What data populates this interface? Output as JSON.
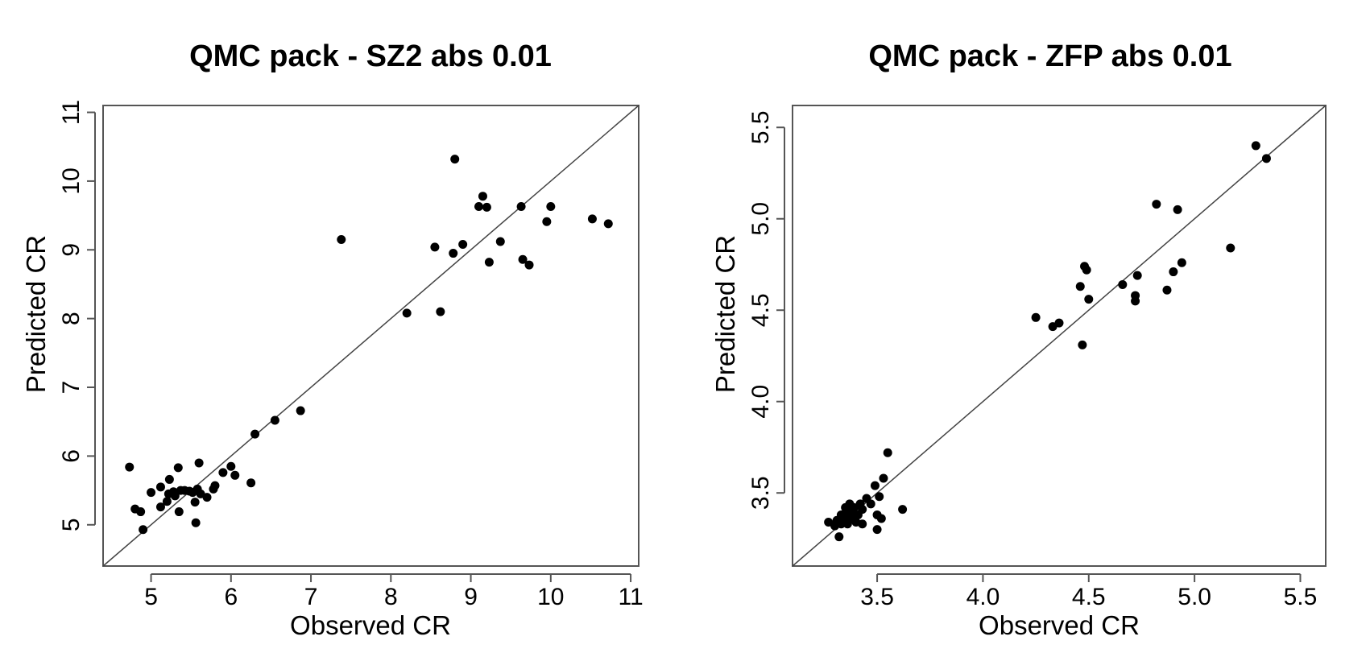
{
  "chart_data": [
    {
      "type": "scatter",
      "title": "QMC pack  -  SZ2 abs 0.01",
      "xlabel": "Observed CR",
      "ylabel": "Predicted CR",
      "xlim": [
        4.4,
        11.1
      ],
      "ylim": [
        4.4,
        11.1
      ],
      "xticks": [
        5,
        6,
        7,
        8,
        9,
        10,
        11
      ],
      "yticks": [
        5,
        6,
        7,
        8,
        9,
        10,
        11
      ],
      "xtick_labels": [
        "5",
        "6",
        "7",
        "8",
        "9",
        "10",
        "11"
      ],
      "ytick_labels": [
        "5",
        "6",
        "7",
        "8",
        "9",
        "10",
        "11"
      ],
      "reference_line": "y = x",
      "grid": false,
      "points": [
        [
          4.73,
          5.84
        ],
        [
          4.8,
          5.23
        ],
        [
          4.87,
          5.19
        ],
        [
          4.9,
          4.93
        ],
        [
          5.0,
          5.47
        ],
        [
          5.12,
          5.26
        ],
        [
          5.12,
          5.55
        ],
        [
          5.2,
          5.34
        ],
        [
          5.22,
          5.45
        ],
        [
          5.23,
          5.66
        ],
        [
          5.28,
          5.48
        ],
        [
          5.3,
          5.42
        ],
        [
          5.34,
          5.83
        ],
        [
          5.35,
          5.19
        ],
        [
          5.37,
          5.5
        ],
        [
          5.42,
          5.5
        ],
        [
          5.48,
          5.49
        ],
        [
          5.52,
          5.47
        ],
        [
          5.55,
          5.33
        ],
        [
          5.56,
          5.03
        ],
        [
          5.58,
          5.52
        ],
        [
          5.6,
          5.9
        ],
        [
          5.62,
          5.45
        ],
        [
          5.7,
          5.4
        ],
        [
          5.78,
          5.52
        ],
        [
          5.8,
          5.57
        ],
        [
          5.9,
          5.76
        ],
        [
          6.0,
          5.85
        ],
        [
          6.05,
          5.72
        ],
        [
          6.25,
          5.61
        ],
        [
          6.3,
          6.32
        ],
        [
          6.55,
          6.52
        ],
        [
          6.87,
          6.66
        ],
        [
          7.38,
          9.15
        ],
        [
          8.2,
          8.08
        ],
        [
          8.55,
          9.04
        ],
        [
          8.62,
          8.1
        ],
        [
          8.78,
          8.95
        ],
        [
          8.8,
          10.32
        ],
        [
          8.9,
          9.08
        ],
        [
          9.1,
          9.63
        ],
        [
          9.15,
          9.78
        ],
        [
          9.2,
          9.62
        ],
        [
          9.23,
          8.82
        ],
        [
          9.37,
          9.12
        ],
        [
          9.63,
          9.63
        ],
        [
          9.65,
          8.86
        ],
        [
          9.73,
          8.78
        ],
        [
          9.95,
          9.41
        ],
        [
          10.0,
          9.63
        ],
        [
          10.52,
          9.45
        ],
        [
          10.72,
          9.38
        ]
      ]
    },
    {
      "type": "scatter",
      "title": "QMC pack  -  ZFP abs 0.01",
      "xlabel": "Observed CR",
      "ylabel": "Predicted CR",
      "xlim": [
        3.1,
        5.62
      ],
      "ylim": [
        3.1,
        5.62
      ],
      "xticks": [
        3.5,
        4.0,
        4.5,
        5.0,
        5.5
      ],
      "yticks": [
        3.5,
        4.0,
        4.5,
        5.0,
        5.5
      ],
      "xtick_labels": [
        "3.5",
        "4.0",
        "4.5",
        "5.0",
        "5.5"
      ],
      "ytick_labels": [
        "3.5",
        "4.0",
        "4.5",
        "5.0",
        "5.5"
      ],
      "reference_line": "y = x",
      "grid": false,
      "points": [
        [
          3.27,
          3.34
        ],
        [
          3.3,
          3.32
        ],
        [
          3.31,
          3.35
        ],
        [
          3.32,
          3.26
        ],
        [
          3.33,
          3.38
        ],
        [
          3.33,
          3.33
        ],
        [
          3.34,
          3.36
        ],
        [
          3.35,
          3.42
        ],
        [
          3.35,
          3.39
        ],
        [
          3.36,
          3.33
        ],
        [
          3.37,
          3.44
        ],
        [
          3.37,
          3.37
        ],
        [
          3.38,
          3.4
        ],
        [
          3.38,
          3.36
        ],
        [
          3.39,
          3.42
        ],
        [
          3.4,
          3.34
        ],
        [
          3.41,
          3.38
        ],
        [
          3.42,
          3.44
        ],
        [
          3.43,
          3.33
        ],
        [
          3.43,
          3.41
        ],
        [
          3.45,
          3.47
        ],
        [
          3.47,
          3.44
        ],
        [
          3.49,
          3.54
        ],
        [
          3.5,
          3.3
        ],
        [
          3.5,
          3.38
        ],
        [
          3.51,
          3.48
        ],
        [
          3.52,
          3.36
        ],
        [
          3.53,
          3.58
        ],
        [
          3.55,
          3.72
        ],
        [
          3.62,
          3.41
        ],
        [
          4.25,
          4.46
        ],
        [
          4.33,
          4.41
        ],
        [
          4.36,
          4.43
        ],
        [
          4.46,
          4.63
        ],
        [
          4.47,
          4.31
        ],
        [
          4.48,
          4.74
        ],
        [
          4.49,
          4.72
        ],
        [
          4.5,
          4.56
        ],
        [
          4.66,
          4.64
        ],
        [
          4.72,
          4.55
        ],
        [
          4.72,
          4.58
        ],
        [
          4.73,
          4.69
        ],
        [
          4.82,
          5.08
        ],
        [
          4.87,
          4.61
        ],
        [
          4.9,
          4.71
        ],
        [
          4.92,
          5.05
        ],
        [
          4.94,
          4.76
        ],
        [
          5.17,
          4.84
        ],
        [
          5.29,
          5.4
        ],
        [
          5.34,
          5.33
        ]
      ]
    }
  ]
}
